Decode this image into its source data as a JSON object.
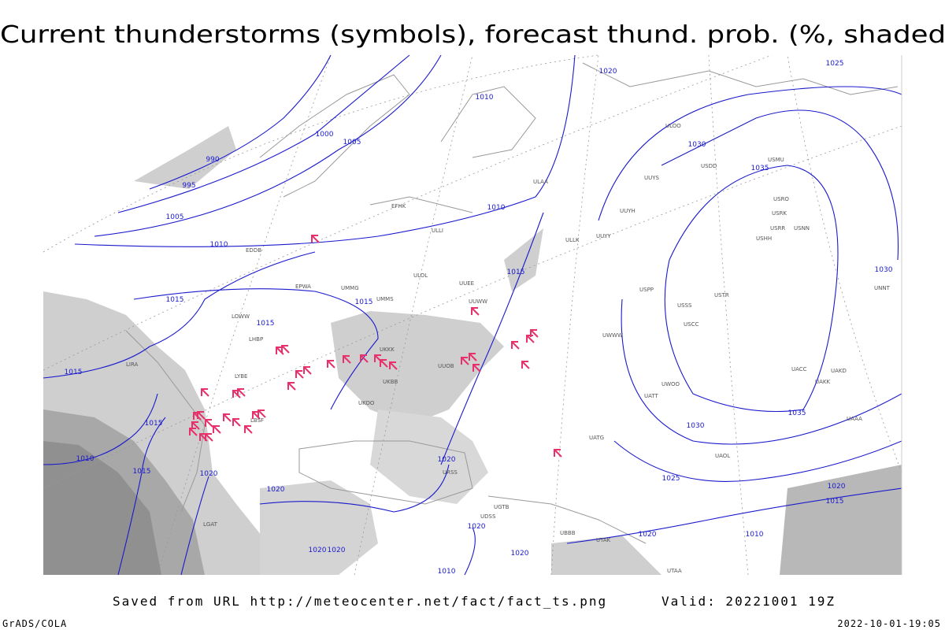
{
  "title": "Current thunderstorms (symbols), forecast thund. prob. (%, shaded)",
  "footer": {
    "source": "Saved from URL http://meteocenter.net/fact/fact_ts.png",
    "valid": "Valid: 20221001 19Z",
    "software": "GrADS/COLA",
    "timestamp": "2022-10-01-19:05"
  },
  "isobar_labels": [
    "1010",
    "1020",
    "1025",
    "1000",
    "1005",
    "990",
    "995",
    "1005",
    "1010",
    "1010",
    "1015",
    "1015",
    "1015",
    "1015",
    "1030",
    "1035",
    "1030",
    "1015",
    "1015",
    "1010",
    "1015",
    "1020",
    "1020",
    "1020",
    "1035",
    "1030",
    "1025",
    "1020",
    "1020",
    "1015",
    "1020",
    "1020",
    "1020",
    "1020",
    "1010",
    "1010"
  ],
  "station_labels": [
    "UUEE",
    "ULLI",
    "EFHK",
    "UMMS",
    "ULOL",
    "UKKK",
    "UKBB",
    "UUOB",
    "UUWW",
    "ULAA",
    "ULLK",
    "UUYY",
    "UUYH",
    "ULOO",
    "UUYS",
    "USDD",
    "USMU",
    "USRO",
    "USRK",
    "USRR",
    "USNN",
    "USHH",
    "USPP",
    "USSS",
    "USTR",
    "USCC",
    "UACC",
    "UAKK",
    "UAKD",
    "UATT",
    "UWOO",
    "UWWW",
    "URSS",
    "UGTB",
    "UBBB",
    "UTAK",
    "UTAA",
    "UKOO",
    "LBSF",
    "LYBE",
    "LHBP",
    "LOWW",
    "EPWA",
    "UMMG",
    "UDSS",
    "UATG",
    "UAOL",
    "LIRA",
    "LGAT",
    "EDDB",
    "UNNT",
    "UAAA"
  ]
}
